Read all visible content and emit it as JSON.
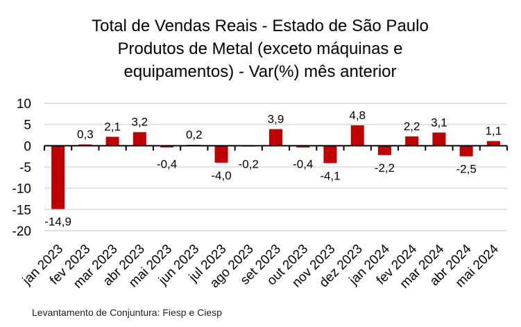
{
  "chart_data": {
    "type": "bar",
    "title": [
      "Total de Vendas Reais - Estado de São Paulo",
      "Produtos de Metal (exceto máquinas e",
      "equipamentos) - Var(%) mês anterior"
    ],
    "categories": [
      "jan 2023",
      "fev 2023",
      "mar 2023",
      "abr 2023",
      "mai 2023",
      "jun 2023",
      "jul 2023",
      "ago 2023",
      "set 2023",
      "out 2023",
      "nov 2023",
      "dez 2023",
      "jan 2024",
      "fev 2024",
      "mar 2024",
      "abr 2024",
      "mai 2024"
    ],
    "values": [
      -14.9,
      0.3,
      2.1,
      3.2,
      -0.4,
      0.2,
      -4.0,
      -0.2,
      3.9,
      -0.4,
      -4.1,
      4.8,
      -2.2,
      2.2,
      3.1,
      -2.5,
      1.1
    ],
    "data_labels": [
      "-14,9",
      "0,3",
      "2,1",
      "3,2",
      "-0,4",
      "0,2",
      "-4,0",
      "-0,2",
      "3,9",
      "-0,4",
      "-4,1",
      "4,8",
      "-2,2",
      "2,2",
      "3,1",
      "-2,5",
      "1,1"
    ],
    "ylim": [
      -20,
      10
    ],
    "yticks": [
      10,
      5,
      0,
      -5,
      -10,
      -15,
      -20
    ],
    "ytick_labels": [
      "10",
      "5",
      "0",
      "-5",
      "-10",
      "-15",
      "-20"
    ],
    "grid": true,
    "xlabel": "",
    "ylabel": "",
    "bar_color": "#c00000",
    "source": "Levantamento de Conjuntura: Fiesp e Ciesp"
  }
}
